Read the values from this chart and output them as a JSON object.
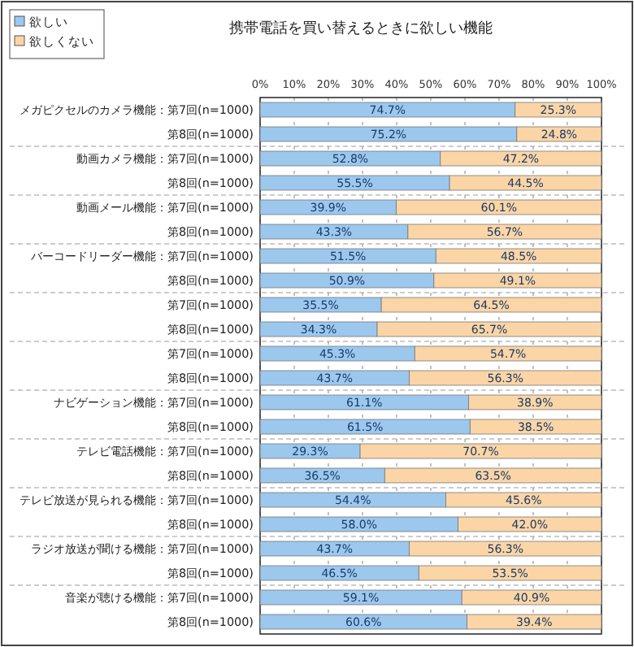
{
  "chart_data": {
    "type": "bar",
    "orientation": "horizontal",
    "stacked": true,
    "title": "携帯電話を買い替えるときに欲しい機能",
    "categories": [
      "メガピクセルのカメラ機能：第7回(n=1000)",
      "第8回(n=1000)",
      "動画カメラ機能：第7回(n=1000)",
      "第8回(n=1000)",
      "動画メール機能：第7回(n=1000)",
      "第8回(n=1000)",
      "バーコードリーダー機能：第7回(n=1000)",
      "第8回(n=1000)",
      "第7回(n=1000)",
      "第8回(n=1000)",
      "第7回(n=1000)",
      "第8回(n=1000)",
      "ナビゲーション機能：第7回(n=1000)",
      "第8回(n=1000)",
      "テレビ電話機能：第7回(n=1000)",
      "第8回(n=1000)",
      "テレビ放送が見られる機能：第7回(n=1000)",
      "第8回(n=1000)",
      "ラジオ放送が聞ける機能：第7回(n=1000)",
      "第8回(n=1000)",
      "音楽が聴ける機能：第7回(n=1000)",
      "第8回(n=1000)"
    ],
    "series": [
      {
        "name": "欲しい",
        "color": "#9cc8ee",
        "values": [
          74.7,
          75.2,
          52.8,
          55.5,
          39.9,
          43.3,
          51.5,
          50.9,
          35.5,
          34.3,
          45.3,
          43.7,
          61.1,
          61.5,
          29.3,
          36.5,
          54.4,
          58.0,
          43.7,
          46.5,
          59.1,
          60.6
        ],
        "value_labels": [
          "74.7%",
          "75.2%",
          "52.8%",
          "55.5%",
          "39.9%",
          "43.3%",
          "51.5%",
          "50.9%",
          "35.5%",
          "34.3%",
          "45.3%",
          "43.7%",
          "61.1%",
          "61.5%",
          "29.3%",
          "36.5%",
          "54.4%",
          "58.0%",
          "43.7%",
          "46.5%",
          "59.1%",
          "60.6%"
        ]
      },
      {
        "name": "欲しくない",
        "color": "#fbd5a5",
        "values": [
          25.3,
          24.8,
          47.2,
          44.5,
          60.1,
          56.7,
          48.5,
          49.1,
          64.5,
          65.7,
          54.7,
          56.3,
          38.9,
          38.5,
          70.7,
          63.5,
          45.6,
          42.0,
          56.3,
          53.5,
          40.9,
          39.4
        ],
        "value_labels": [
          "25.3%",
          "24.8%",
          "47.2%",
          "44.5%",
          "60.1%",
          "56.7%",
          "48.5%",
          "49.1%",
          "64.5%",
          "65.7%",
          "54.7%",
          "56.3%",
          "38.9%",
          "38.5%",
          "70.7%",
          "63.5%",
          "45.6%",
          "42.0%",
          "56.3%",
          "53.5%",
          "40.9%",
          "39.4%"
        ]
      }
    ],
    "xlim": [
      0,
      100
    ],
    "xticks": [
      {
        "value": 0,
        "label": "0%"
      },
      {
        "value": 10,
        "label": "10%"
      },
      {
        "value": 20,
        "label": "20%"
      },
      {
        "value": 30,
        "label": "30%"
      },
      {
        "value": 40,
        "label": "40%"
      },
      {
        "value": 50,
        "label": "50%"
      },
      {
        "value": 60,
        "label": "60%"
      },
      {
        "value": 70,
        "label": "70%"
      },
      {
        "value": 80,
        "label": "80%"
      },
      {
        "value": 90,
        "label": "90%"
      },
      {
        "value": 100,
        "label": "100%"
      }
    ],
    "grid": "x",
    "legend": "top left"
  }
}
